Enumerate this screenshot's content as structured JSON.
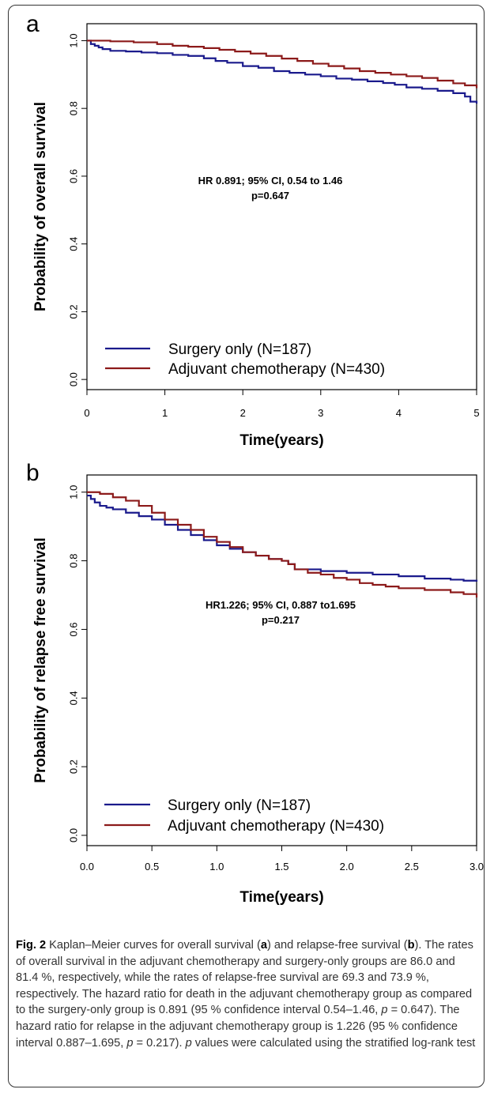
{
  "figure": {
    "panels": [
      {
        "letter": "a",
        "annotation_line1": "HR 0.891; 95% CI, 0.54 to 1.46",
        "annotation_line2": "p=0.647"
      },
      {
        "letter": "b",
        "annotation_line1": "HR1.226; 95% CI, 0.887 to1.695",
        "annotation_line2": "p=0.217"
      }
    ]
  },
  "caption": {
    "label": "Fig. 2",
    "text_1": " Kaplan–Meier curves for overall survival (",
    "a": "a",
    "text_2": ") and relapse-free survival (",
    "b": "b",
    "text_3": "). The rates of overall survival in the adjuvant chemotherapy and surgery-only groups are 86.0 and 81.4 %, respectively, while the rates of relapse-free survival are 69.3 and 73.9 %, respectively. The hazard ratio for death in the adjuvant chemotherapy group as compared to the surgery-only group is 0.891 (95 % confidence interval 0.54–1.46, ",
    "p1": "p",
    "text_4": " = 0.647). The hazard ratio for relapse in the adjuvant chemotherapy group is 1.226 (95 % confidence interval 0.887–1.695, ",
    "p2": "p",
    "text_5": " = 0.217). ",
    "p3": "p",
    "text_6": " values were calculated using the stratified log-rank test"
  },
  "chart_data": [
    {
      "type": "line",
      "title": "",
      "xlabel": "Time(years)",
      "ylabel": "Probability of overall survival",
      "xlim": [
        0,
        5
      ],
      "ylim": [
        -0.03,
        1.05
      ],
      "xticks": [
        "0",
        "1",
        "2",
        "3",
        "4",
        "5"
      ],
      "yticks": [
        "0.0",
        "0.2",
        "0.4",
        "0.6",
        "0.8",
        "1.0"
      ],
      "legend_position": "bottom-left",
      "grid": false,
      "series": [
        {
          "name": "Surgery only (N=187)",
          "color": "#1a1a8c",
          "x": [
            0,
            0.05,
            0.1,
            0.15,
            0.2,
            0.3,
            0.5,
            0.7,
            0.9,
            1.1,
            1.3,
            1.5,
            1.65,
            1.8,
            2.0,
            2.2,
            2.4,
            2.6,
            2.8,
            3.0,
            3.2,
            3.4,
            3.6,
            3.8,
            3.95,
            4.1,
            4.3,
            4.5,
            4.7,
            4.85,
            4.92,
            5.0
          ],
          "y": [
            1.0,
            0.99,
            0.985,
            0.98,
            0.975,
            0.97,
            0.968,
            0.965,
            0.963,
            0.958,
            0.955,
            0.948,
            0.94,
            0.935,
            0.925,
            0.92,
            0.91,
            0.905,
            0.9,
            0.895,
            0.888,
            0.885,
            0.88,
            0.875,
            0.87,
            0.862,
            0.858,
            0.852,
            0.845,
            0.835,
            0.82,
            0.814
          ]
        },
        {
          "name": "Adjuvant chemotherapy (N=430)",
          "color": "#8c1a1a",
          "x": [
            0,
            0.3,
            0.6,
            0.9,
            1.1,
            1.3,
            1.5,
            1.7,
            1.9,
            2.1,
            2.3,
            2.5,
            2.7,
            2.9,
            3.1,
            3.3,
            3.5,
            3.7,
            3.9,
            4.1,
            4.3,
            4.5,
            4.7,
            4.85,
            5.0
          ],
          "y": [
            1.0,
            0.998,
            0.995,
            0.99,
            0.985,
            0.982,
            0.978,
            0.973,
            0.968,
            0.962,
            0.955,
            0.947,
            0.94,
            0.932,
            0.925,
            0.918,
            0.91,
            0.905,
            0.9,
            0.895,
            0.89,
            0.882,
            0.874,
            0.868,
            0.86
          ]
        }
      ]
    },
    {
      "type": "line",
      "title": "",
      "xlabel": "Time(years)",
      "ylabel": "Probability of relapse free survival",
      "xlim": [
        0,
        3
      ],
      "ylim": [
        -0.03,
        1.05
      ],
      "xticks": [
        "0.0",
        "0.5",
        "1.0",
        "1.5",
        "2.0",
        "2.5",
        "3.0"
      ],
      "yticks": [
        "0.0",
        "0.2",
        "0.4",
        "0.6",
        "0.8",
        "1.0"
      ],
      "legend_position": "bottom-left",
      "grid": false,
      "series": [
        {
          "name": "Surgery only (N=187)",
          "color": "#1a1a8c",
          "x": [
            0,
            0.03,
            0.06,
            0.1,
            0.15,
            0.2,
            0.3,
            0.4,
            0.5,
            0.6,
            0.7,
            0.8,
            0.9,
            1.0,
            1.1,
            1.2,
            1.3,
            1.4,
            1.5,
            1.55,
            1.6,
            1.8,
            2.0,
            2.2,
            2.4,
            2.6,
            2.8,
            2.9,
            3.0
          ],
          "y": [
            0.99,
            0.98,
            0.97,
            0.96,
            0.955,
            0.95,
            0.94,
            0.93,
            0.92,
            0.905,
            0.89,
            0.875,
            0.86,
            0.845,
            0.835,
            0.825,
            0.815,
            0.805,
            0.8,
            0.79,
            0.775,
            0.77,
            0.765,
            0.76,
            0.755,
            0.748,
            0.745,
            0.742,
            0.739
          ]
        },
        {
          "name": "Adjuvant chemotherapy (N=430)",
          "color": "#8c1a1a",
          "x": [
            0,
            0.1,
            0.2,
            0.3,
            0.4,
            0.5,
            0.6,
            0.7,
            0.8,
            0.9,
            1.0,
            1.1,
            1.2,
            1.3,
            1.4,
            1.5,
            1.55,
            1.6,
            1.7,
            1.8,
            1.9,
            2.0,
            2.1,
            2.2,
            2.3,
            2.4,
            2.6,
            2.8,
            2.9,
            3.0
          ],
          "y": [
            1.0,
            0.995,
            0.985,
            0.975,
            0.96,
            0.94,
            0.92,
            0.905,
            0.89,
            0.87,
            0.855,
            0.84,
            0.825,
            0.815,
            0.805,
            0.8,
            0.79,
            0.775,
            0.765,
            0.76,
            0.75,
            0.745,
            0.735,
            0.73,
            0.725,
            0.72,
            0.715,
            0.708,
            0.703,
            0.693
          ]
        }
      ]
    }
  ]
}
